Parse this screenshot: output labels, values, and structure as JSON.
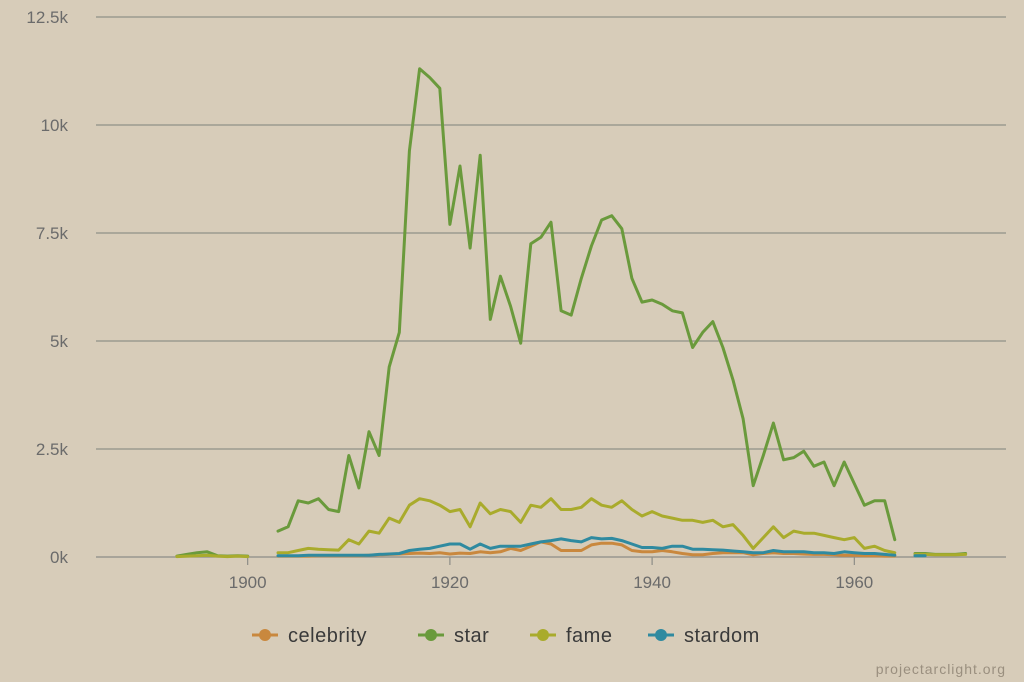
{
  "chart_data": {
    "type": "line",
    "title": "",
    "xlabel": "",
    "ylabel": "",
    "xlim": [
      1885,
      1975
    ],
    "ylim": [
      0,
      12500
    ],
    "yticks": [
      0,
      2500,
      5000,
      7500,
      10000,
      12500
    ],
    "ytick_labels": [
      "0k",
      "2.5k",
      "5k",
      "7.5k",
      "10k",
      "12.5k"
    ],
    "xticks": [
      1900,
      1920,
      1940,
      1960
    ],
    "xtick_labels": [
      "1900",
      "1920",
      "1940",
      "1960"
    ],
    "grid": "horizontal",
    "legend_position": "bottom-center",
    "series": [
      {
        "name": "celebrity",
        "color": "#c9883e",
        "points": [
          [
            1903,
            20
          ],
          [
            1904,
            20
          ],
          [
            1905,
            20
          ],
          [
            1906,
            20
          ],
          [
            1907,
            30
          ],
          [
            1908,
            30
          ],
          [
            1909,
            30
          ],
          [
            1910,
            30
          ],
          [
            1911,
            30
          ],
          [
            1912,
            40
          ],
          [
            1913,
            50
          ],
          [
            1914,
            60
          ],
          [
            1915,
            70
          ],
          [
            1916,
            80
          ],
          [
            1917,
            90
          ],
          [
            1918,
            80
          ],
          [
            1919,
            100
          ],
          [
            1920,
            70
          ],
          [
            1921,
            90
          ],
          [
            1922,
            80
          ],
          [
            1923,
            120
          ],
          [
            1924,
            100
          ],
          [
            1925,
            120
          ],
          [
            1926,
            200
          ],
          [
            1927,
            150
          ],
          [
            1928,
            250
          ],
          [
            1929,
            350
          ],
          [
            1930,
            300
          ],
          [
            1931,
            150
          ],
          [
            1932,
            150
          ],
          [
            1933,
            150
          ],
          [
            1934,
            280
          ],
          [
            1935,
            320
          ],
          [
            1936,
            320
          ],
          [
            1937,
            280
          ],
          [
            1938,
            150
          ],
          [
            1939,
            120
          ],
          [
            1940,
            120
          ],
          [
            1941,
            150
          ],
          [
            1942,
            120
          ],
          [
            1943,
            80
          ],
          [
            1944,
            50
          ],
          [
            1945,
            50
          ],
          [
            1946,
            80
          ],
          [
            1947,
            100
          ],
          [
            1948,
            100
          ],
          [
            1949,
            100
          ],
          [
            1950,
            50
          ],
          [
            1951,
            80
          ],
          [
            1952,
            100
          ],
          [
            1953,
            80
          ],
          [
            1954,
            80
          ],
          [
            1955,
            70
          ],
          [
            1956,
            60
          ],
          [
            1957,
            60
          ],
          [
            1958,
            50
          ],
          [
            1959,
            40
          ],
          [
            1960,
            40
          ],
          [
            1961,
            30
          ],
          [
            1962,
            30
          ],
          [
            1963,
            20
          ],
          [
            1964,
            20
          ]
        ]
      },
      {
        "name": "star",
        "color": "#6a9a3c",
        "segments": [
          [
            [
              1893,
              20
            ],
            [
              1894,
              60
            ],
            [
              1895,
              100
            ],
            [
              1896,
              120
            ],
            [
              1897,
              30
            ],
            [
              1898,
              20
            ],
            [
              1899,
              30
            ],
            [
              1900,
              20
            ]
          ],
          [
            [
              1903,
              600
            ],
            [
              1904,
              700
            ],
            [
              1905,
              1300
            ],
            [
              1906,
              1250
            ],
            [
              1907,
              1350
            ],
            [
              1908,
              1100
            ],
            [
              1909,
              1050
            ],
            [
              1910,
              2350
            ],
            [
              1911,
              1600
            ],
            [
              1912,
              2900
            ],
            [
              1913,
              2350
            ],
            [
              1914,
              4400
            ],
            [
              1915,
              5200
            ],
            [
              1916,
              9400
            ],
            [
              1917,
              11300
            ],
            [
              1918,
              11100
            ],
            [
              1919,
              10850
            ],
            [
              1920,
              7700
            ],
            [
              1921,
              9050
            ],
            [
              1922,
              7150
            ],
            [
              1923,
              9300
            ],
            [
              1924,
              5500
            ],
            [
              1925,
              6500
            ],
            [
              1926,
              5800
            ],
            [
              1927,
              4950
            ],
            [
              1928,
              7250
            ],
            [
              1929,
              7400
            ],
            [
              1930,
              7750
            ],
            [
              1931,
              5700
            ],
            [
              1932,
              5600
            ],
            [
              1933,
              6450
            ],
            [
              1934,
              7200
            ],
            [
              1935,
              7800
            ],
            [
              1936,
              7900
            ],
            [
              1937,
              7600
            ],
            [
              1938,
              6450
            ],
            [
              1939,
              5900
            ],
            [
              1940,
              5950
            ],
            [
              1941,
              5850
            ],
            [
              1942,
              5700
            ],
            [
              1943,
              5650
            ],
            [
              1944,
              4850
            ],
            [
              1945,
              5200
            ],
            [
              1946,
              5450
            ],
            [
              1947,
              4850
            ],
            [
              1948,
              4100
            ],
            [
              1949,
              3200
            ],
            [
              1950,
              1650
            ],
            [
              1951,
              2350
            ],
            [
              1952,
              3100
            ],
            [
              1953,
              2250
            ],
            [
              1954,
              2300
            ],
            [
              1955,
              2450
            ],
            [
              1956,
              2100
            ],
            [
              1957,
              2200
            ],
            [
              1958,
              1650
            ],
            [
              1959,
              2200
            ],
            [
              1960,
              1700
            ],
            [
              1961,
              1200
            ],
            [
              1962,
              1300
            ],
            [
              1963,
              1300
            ],
            [
              1964,
              400
            ]
          ],
          [
            [
              1966,
              80
            ],
            [
              1967,
              80
            ],
            [
              1968,
              60
            ],
            [
              1969,
              60
            ],
            [
              1970,
              60
            ],
            [
              1971,
              80
            ]
          ]
        ]
      },
      {
        "name": "fame",
        "color": "#a9ab2c",
        "segments": [
          [
            [
              1893,
              10
            ],
            [
              1894,
              20
            ],
            [
              1895,
              30
            ],
            [
              1896,
              40
            ],
            [
              1897,
              20
            ],
            [
              1898,
              10
            ],
            [
              1899,
              20
            ],
            [
              1900,
              10
            ]
          ],
          [
            [
              1903,
              100
            ],
            [
              1904,
              100
            ],
            [
              1905,
              150
            ],
            [
              1906,
              200
            ],
            [
              1907,
              180
            ],
            [
              1908,
              170
            ],
            [
              1909,
              160
            ],
            [
              1910,
              400
            ],
            [
              1911,
              300
            ],
            [
              1912,
              600
            ],
            [
              1913,
              550
            ],
            [
              1914,
              900
            ],
            [
              1915,
              800
            ],
            [
              1916,
              1200
            ],
            [
              1917,
              1350
            ],
            [
              1918,
              1300
            ],
            [
              1919,
              1200
            ],
            [
              1920,
              1050
            ],
            [
              1921,
              1100
            ],
            [
              1922,
              700
            ],
            [
              1923,
              1250
            ],
            [
              1924,
              1000
            ],
            [
              1925,
              1100
            ],
            [
              1926,
              1050
            ],
            [
              1927,
              800
            ],
            [
              1928,
              1200
            ],
            [
              1929,
              1150
            ],
            [
              1930,
              1350
            ],
            [
              1931,
              1100
            ],
            [
              1932,
              1100
            ],
            [
              1933,
              1150
            ],
            [
              1934,
              1350
            ],
            [
              1935,
              1200
            ],
            [
              1936,
              1150
            ],
            [
              1937,
              1300
            ],
            [
              1938,
              1100
            ],
            [
              1939,
              950
            ],
            [
              1940,
              1050
            ],
            [
              1941,
              950
            ],
            [
              1942,
              900
            ],
            [
              1943,
              850
            ],
            [
              1944,
              850
            ],
            [
              1945,
              800
            ],
            [
              1946,
              850
            ],
            [
              1947,
              700
            ],
            [
              1948,
              750
            ],
            [
              1949,
              500
            ],
            [
              1950,
              200
            ],
            [
              1951,
              450
            ],
            [
              1952,
              700
            ],
            [
              1953,
              450
            ],
            [
              1954,
              600
            ],
            [
              1955,
              550
            ],
            [
              1956,
              550
            ],
            [
              1957,
              500
            ],
            [
              1958,
              450
            ],
            [
              1959,
              400
            ],
            [
              1960,
              450
            ],
            [
              1961,
              200
            ],
            [
              1962,
              250
            ],
            [
              1963,
              150
            ],
            [
              1964,
              100
            ]
          ],
          [
            [
              1966,
              60
            ],
            [
              1967,
              60
            ],
            [
              1968,
              50
            ],
            [
              1969,
              50
            ],
            [
              1970,
              50
            ],
            [
              1971,
              60
            ]
          ]
        ]
      },
      {
        "name": "stardom",
        "color": "#2f8aa0",
        "segments": [
          [
            [
              1903,
              30
            ],
            [
              1904,
              30
            ],
            [
              1905,
              30
            ],
            [
              1906,
              40
            ],
            [
              1907,
              40
            ],
            [
              1908,
              40
            ],
            [
              1909,
              40
            ],
            [
              1910,
              40
            ],
            [
              1911,
              40
            ],
            [
              1912,
              40
            ],
            [
              1913,
              60
            ],
            [
              1914,
              70
            ],
            [
              1915,
              80
            ],
            [
              1916,
              150
            ],
            [
              1917,
              180
            ],
            [
              1918,
              200
            ],
            [
              1919,
              250
            ],
            [
              1920,
              300
            ],
            [
              1921,
              300
            ],
            [
              1922,
              180
            ],
            [
              1923,
              300
            ],
            [
              1924,
              200
            ],
            [
              1925,
              250
            ],
            [
              1926,
              250
            ],
            [
              1927,
              250
            ],
            [
              1928,
              300
            ],
            [
              1929,
              350
            ],
            [
              1930,
              380
            ],
            [
              1931,
              420
            ],
            [
              1932,
              380
            ],
            [
              1933,
              350
            ],
            [
              1934,
              450
            ],
            [
              1935,
              420
            ],
            [
              1936,
              430
            ],
            [
              1937,
              380
            ],
            [
              1938,
              300
            ],
            [
              1939,
              220
            ],
            [
              1940,
              220
            ],
            [
              1941,
              200
            ],
            [
              1942,
              250
            ],
            [
              1943,
              250
            ],
            [
              1944,
              180
            ],
            [
              1945,
              180
            ],
            [
              1946,
              170
            ],
            [
              1947,
              160
            ],
            [
              1948,
              140
            ],
            [
              1949,
              120
            ],
            [
              1950,
              100
            ],
            [
              1951,
              100
            ],
            [
              1952,
              150
            ],
            [
              1953,
              120
            ],
            [
              1954,
              120
            ],
            [
              1955,
              120
            ],
            [
              1956,
              100
            ],
            [
              1957,
              100
            ],
            [
              1958,
              80
            ],
            [
              1959,
              120
            ],
            [
              1960,
              100
            ],
            [
              1961,
              80
            ],
            [
              1962,
              80
            ],
            [
              1963,
              60
            ],
            [
              1964,
              40
            ]
          ],
          [
            [
              1966,
              30
            ],
            [
              1967,
              30
            ]
          ]
        ]
      }
    ]
  },
  "credit": "projectarclight.org"
}
